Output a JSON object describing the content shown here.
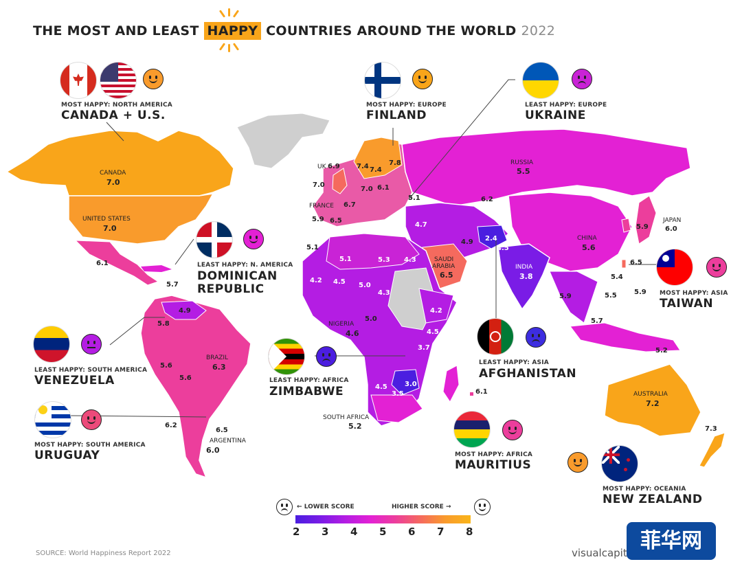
{
  "title": {
    "prefix": "THE MOST AND LEAST",
    "highlight": "HAPPY",
    "suffix": "COUNTRIES AROUND THE WORLD",
    "year": "2022"
  },
  "callouts": {
    "canada_us": {
      "caption": "MOST HAPPY: NORTH AMERICA",
      "name": "CANADA + U.S."
    },
    "finland": {
      "caption": "MOST HAPPY: EUROPE",
      "name": "FINLAND"
    },
    "ukraine": {
      "caption": "LEAST HAPPY: EUROPE",
      "name": "UKRAINE"
    },
    "dominican": {
      "caption": "LEAST HAPPY: N. AMERICA",
      "name_line1": "DOMINICAN",
      "name_line2": "REPUBLIC"
    },
    "taiwan": {
      "caption": "MOST HAPPY: ASIA",
      "name": "TAIWAN"
    },
    "venezuela": {
      "caption": "LEAST HAPPY: SOUTH AMERICA",
      "name": "VENEZUELA"
    },
    "zimbabwe": {
      "caption": "LEAST HAPPY: AFRICA",
      "name": "ZIMBABWE"
    },
    "afghanistan": {
      "caption": "LEAST HAPPY: ASIA",
      "name": "AFGHANISTAN"
    },
    "uruguay": {
      "caption": "MOST HAPPY: SOUTH AMERICA",
      "name": "URUGUAY"
    },
    "mauritius": {
      "caption": "MOST HAPPY: AFRICA",
      "name": "MAURITIUS"
    },
    "new_zealand": {
      "caption": "MOST HAPPY: OCEANIA",
      "name": "NEW ZEALAND"
    }
  },
  "country_labels": {
    "canada": {
      "name": "CANADA",
      "score": "7.0"
    },
    "united_states": {
      "name": "UNITED STATES",
      "score": "7.0"
    },
    "russia": {
      "name": "RUSSIA",
      "score": "5.5"
    },
    "china": {
      "name": "CHINA",
      "score": "5.6"
    },
    "japan": {
      "name": "JAPAN",
      "score": "6.0"
    },
    "india": {
      "name": "INDIA",
      "score": "3.8"
    },
    "saudi": {
      "name_line1": "SAUDI",
      "name_line2": "ARABIA",
      "score": "6.5"
    },
    "uk": {
      "name": "UK",
      "score": "6.9"
    },
    "france": {
      "name": "FRANCE",
      "score": "6.7"
    },
    "nigeria": {
      "name": "NIGERIA",
      "score": "4.6"
    },
    "south_africa": {
      "name": "SOUTH AFRICA",
      "score": "5.2"
    },
    "brazil": {
      "name": "BRAZIL",
      "score": "6.3"
    },
    "argentina": {
      "name": "ARGENTINA",
      "score": "6.0"
    },
    "australia": {
      "name": "AUSTRALIA",
      "score": "7.2"
    }
  },
  "map_scores": [
    "7.4",
    "7.4",
    "7.8",
    "7.0",
    "7.0",
    "6.1",
    "5.1",
    "6.2",
    "5.9",
    "6.5",
    "4.7",
    "4.9",
    "2.4",
    "4.5",
    "5.9",
    "6.1",
    "5.7",
    "5.1",
    "5.1",
    "5.3",
    "4.3",
    "4.2",
    "4.5",
    "5.0",
    "4.3",
    "4.2",
    "5.0",
    "4.5",
    "3.7",
    "3.0",
    "4.5",
    "3.5",
    "4.9",
    "5.8",
    "5.6",
    "5.6",
    "6.2",
    "6.5",
    "6.5",
    "5.4",
    "5.9",
    "5.9",
    "5.5",
    "5.7",
    "5.2",
    "6.1",
    "7.3"
  ],
  "legend": {
    "lower": "LOWER SCORE",
    "higher": "HIGHER SCORE",
    "ticks": [
      "2",
      "3",
      "4",
      "5",
      "6",
      "7",
      "8"
    ],
    "colors": [
      "#4b1ee0",
      "#7a1ce6",
      "#b41de3",
      "#e321d4",
      "#ec3e9c",
      "#f56a5e",
      "#f99b2c",
      "#f9b51a"
    ]
  },
  "source": "SOURCE: World Happiness Report 2022",
  "brand": "visualcapit",
  "watermark": "菲华网",
  "colors": {
    "ocean": "#ffffff",
    "no_data": "#cfcfcf",
    "highlight": "#f9a51a"
  }
}
